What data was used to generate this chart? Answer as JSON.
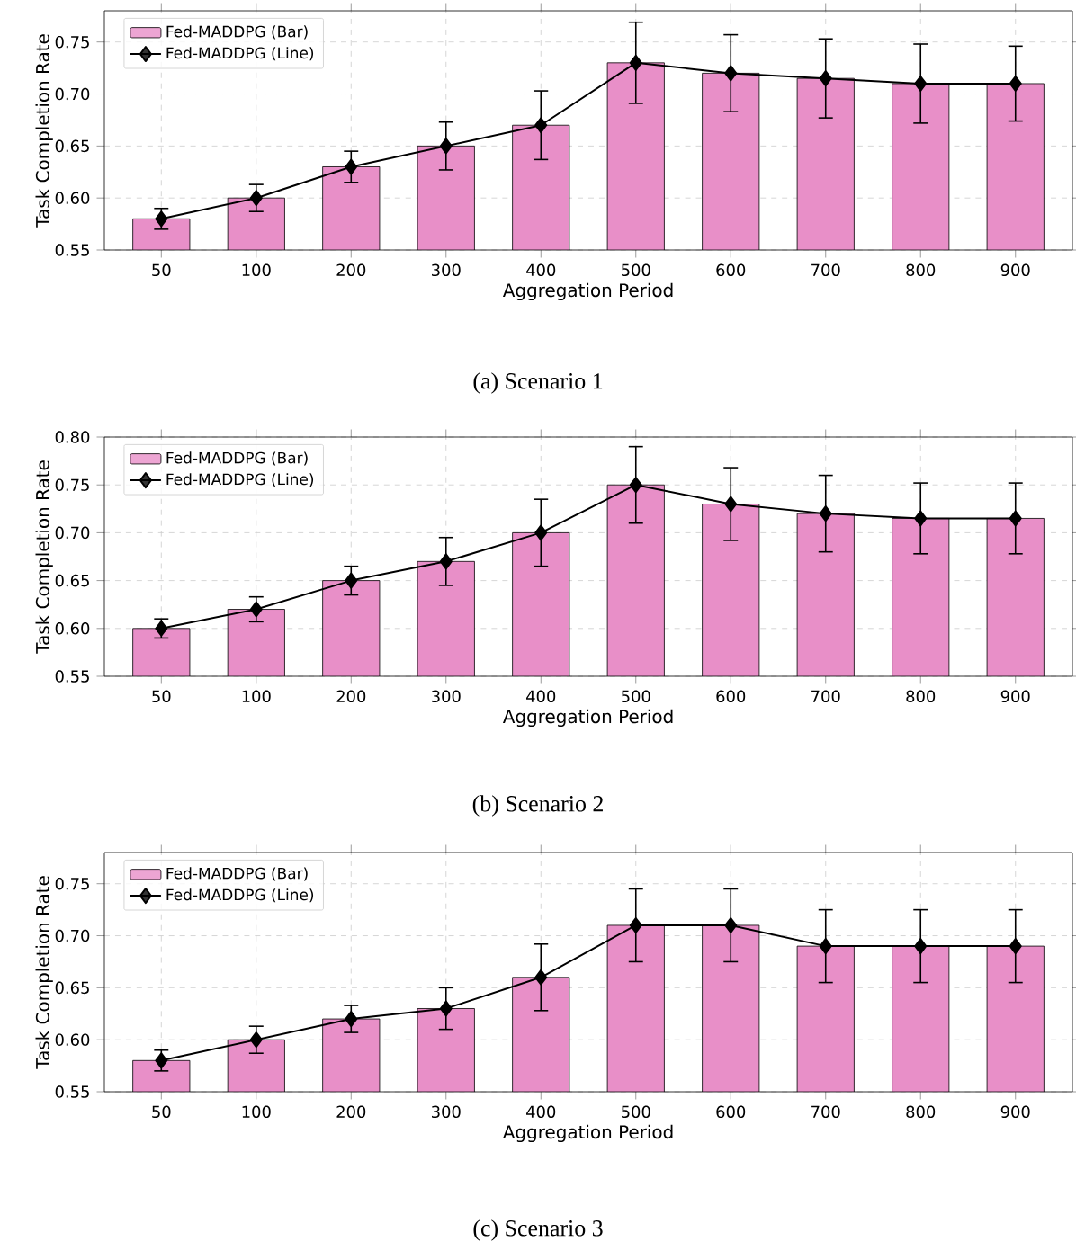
{
  "chart_data": [
    {
      "type": "bar",
      "title": "(a) Scenario 1",
      "xlabel": "Aggregation Period",
      "ylabel": "Task Completion Rate",
      "categories": [
        "50",
        "100",
        "200",
        "300",
        "400",
        "500",
        "600",
        "700",
        "800",
        "900"
      ],
      "ylim": [
        0.55,
        0.78
      ],
      "yticks": [
        {
          "value": 0.55,
          "label": "0.55"
        },
        {
          "value": 0.6,
          "label": "0.60"
        },
        {
          "value": 0.65,
          "label": "0.65"
        },
        {
          "value": 0.7,
          "label": "0.70"
        },
        {
          "value": 0.75,
          "label": "0.75"
        }
      ],
      "grid": true,
      "legend": "top left",
      "series": [
        {
          "name": "Fed-MADDPG (Bar)",
          "color": "#e88fc8",
          "values": [
            0.58,
            0.6,
            0.63,
            0.65,
            0.67,
            0.73,
            0.72,
            0.715,
            0.71,
            0.71
          ]
        },
        {
          "name": "Fed-MADDPG (Line)",
          "type": "line",
          "color": "#000000",
          "marker": "diamond",
          "values": [
            0.58,
            0.6,
            0.63,
            0.65,
            0.67,
            0.73,
            0.72,
            0.715,
            0.71,
            0.71
          ],
          "errors": [
            0.01,
            0.013,
            0.015,
            0.023,
            0.033,
            0.039,
            0.037,
            0.038,
            0.038,
            0.036
          ]
        }
      ]
    },
    {
      "type": "bar",
      "title": "(b) Scenario 2",
      "xlabel": "Aggregation Period",
      "ylabel": "Task Completion Rate",
      "categories": [
        "50",
        "100",
        "200",
        "300",
        "400",
        "500",
        "600",
        "700",
        "800",
        "900"
      ],
      "ylim": [
        0.55,
        0.8
      ],
      "yticks": [
        {
          "value": 0.55,
          "label": "0.55"
        },
        {
          "value": 0.6,
          "label": "0.60"
        },
        {
          "value": 0.65,
          "label": "0.65"
        },
        {
          "value": 0.7,
          "label": "0.70"
        },
        {
          "value": 0.75,
          "label": "0.75"
        },
        {
          "value": 0.8,
          "label": "0.80"
        }
      ],
      "grid": true,
      "legend": "top left",
      "series": [
        {
          "name": "Fed-MADDPG (Bar)",
          "color": "#e88fc8",
          "values": [
            0.6,
            0.62,
            0.65,
            0.67,
            0.7,
            0.75,
            0.73,
            0.72,
            0.715,
            0.715
          ]
        },
        {
          "name": "Fed-MADDPG (Line)",
          "type": "line",
          "color": "#000000",
          "marker": "diamond",
          "values": [
            0.6,
            0.62,
            0.65,
            0.67,
            0.7,
            0.75,
            0.73,
            0.72,
            0.715,
            0.715
          ],
          "errors": [
            0.01,
            0.013,
            0.015,
            0.025,
            0.035,
            0.04,
            0.038,
            0.04,
            0.037,
            0.037
          ]
        }
      ]
    },
    {
      "type": "bar",
      "title": "(c) Scenario 3",
      "xlabel": "Aggregation Period",
      "ylabel": "Task Completion Rate",
      "categories": [
        "50",
        "100",
        "200",
        "300",
        "400",
        "500",
        "600",
        "700",
        "800",
        "900"
      ],
      "ylim": [
        0.55,
        0.78
      ],
      "yticks": [
        {
          "value": 0.55,
          "label": "0.55"
        },
        {
          "value": 0.6,
          "label": "0.60"
        },
        {
          "value": 0.65,
          "label": "0.65"
        },
        {
          "value": 0.7,
          "label": "0.70"
        },
        {
          "value": 0.75,
          "label": "0.75"
        }
      ],
      "grid": true,
      "legend": "top left",
      "series": [
        {
          "name": "Fed-MADDPG (Bar)",
          "color": "#e88fc8",
          "values": [
            0.58,
            0.6,
            0.62,
            0.63,
            0.66,
            0.71,
            0.71,
            0.69,
            0.69,
            0.69
          ]
        },
        {
          "name": "Fed-MADDPG (Line)",
          "type": "line",
          "color": "#000000",
          "marker": "diamond",
          "values": [
            0.58,
            0.6,
            0.62,
            0.63,
            0.66,
            0.71,
            0.71,
            0.69,
            0.69,
            0.69
          ],
          "errors": [
            0.01,
            0.013,
            0.013,
            0.02,
            0.032,
            0.035,
            0.035,
            0.035,
            0.035,
            0.035
          ]
        }
      ]
    }
  ]
}
